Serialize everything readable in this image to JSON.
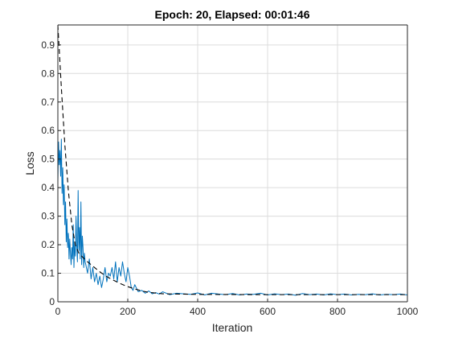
{
  "chart_data": {
    "type": "line",
    "title": "Epoch: 20, Elapsed: 00:01:46",
    "xlabel": "Iteration",
    "ylabel": "Loss",
    "xlim": [
      0,
      1000
    ],
    "ylim": [
      0,
      0.97
    ],
    "xticks": [
      0,
      200,
      400,
      600,
      800,
      1000
    ],
    "yticks": [
      0,
      0.1,
      0.2,
      0.3,
      0.4,
      0.5,
      0.6,
      0.7,
      0.8,
      0.9
    ],
    "grid": true,
    "colors": {
      "raw": "#0072BD",
      "smoothed": "#000000"
    },
    "series": [
      {
        "style": "solid",
        "x": [
          0,
          2,
          4,
          6,
          8,
          10,
          12,
          14,
          16,
          18,
          20,
          22,
          24,
          26,
          28,
          30,
          32,
          34,
          36,
          38,
          40,
          42,
          44,
          46,
          48,
          50,
          52,
          54,
          56,
          58,
          60,
          62,
          64,
          66,
          68,
          70,
          72,
          74,
          76,
          78,
          80,
          85,
          90,
          95,
          100,
          105,
          110,
          115,
          120,
          125,
          130,
          135,
          140,
          145,
          150,
          155,
          160,
          165,
          170,
          175,
          180,
          185,
          190,
          195,
          200,
          205,
          210,
          215,
          220,
          230,
          240,
          250,
          260,
          270,
          280,
          290,
          300,
          320,
          340,
          360,
          380,
          400,
          420,
          440,
          460,
          480,
          500,
          520,
          540,
          560,
          580,
          600,
          620,
          640,
          660,
          680,
          700,
          720,
          740,
          760,
          780,
          800,
          820,
          840,
          860,
          880,
          900,
          920,
          940,
          960,
          980,
          1000
        ],
        "y": [
          0.42,
          0.56,
          0.48,
          0.53,
          0.44,
          0.57,
          0.38,
          0.47,
          0.34,
          0.41,
          0.27,
          0.35,
          0.21,
          0.29,
          0.19,
          0.24,
          0.15,
          0.22,
          0.17,
          0.13,
          0.19,
          0.15,
          0.27,
          0.12,
          0.21,
          0.16,
          0.3,
          0.2,
          0.14,
          0.39,
          0.18,
          0.26,
          0.15,
          0.35,
          0.13,
          0.23,
          0.19,
          0.12,
          0.17,
          0.14,
          0.13,
          0.1,
          0.15,
          0.08,
          0.12,
          0.07,
          0.1,
          0.06,
          0.09,
          0.05,
          0.08,
          0.12,
          0.07,
          0.1,
          0.09,
          0.12,
          0.08,
          0.14,
          0.07,
          0.12,
          0.09,
          0.14,
          0.1,
          0.07,
          0.12,
          0.09,
          0.05,
          0.04,
          0.06,
          0.035,
          0.04,
          0.03,
          0.038,
          0.028,
          0.032,
          0.027,
          0.035,
          0.025,
          0.03,
          0.028,
          0.026,
          0.031,
          0.024,
          0.03,
          0.027,
          0.025,
          0.029,
          0.024,
          0.027,
          0.026,
          0.03,
          0.024,
          0.028,
          0.025,
          0.027,
          0.023,
          0.029,
          0.025,
          0.027,
          0.024,
          0.028,
          0.025,
          0.027,
          0.024,
          0.026,
          0.025,
          0.028,
          0.024,
          0.026,
          0.025,
          0.027,
          0.024
        ]
      },
      {
        "style": "dashed",
        "x": [
          0,
          10,
          20,
          30,
          40,
          50,
          60,
          80,
          100,
          120,
          140,
          160,
          180,
          200,
          220,
          240,
          260,
          300,
          400,
          600,
          800,
          1000
        ],
        "y": [
          0.97,
          0.75,
          0.55,
          0.39,
          0.27,
          0.2,
          0.17,
          0.145,
          0.125,
          0.105,
          0.088,
          0.075,
          0.063,
          0.053,
          0.045,
          0.038,
          0.033,
          0.028,
          0.026,
          0.025,
          0.025,
          0.025
        ]
      }
    ]
  }
}
